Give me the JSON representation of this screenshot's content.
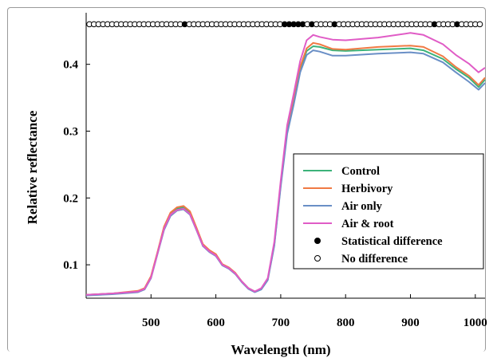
{
  "chart_data": {
    "type": "line",
    "xlabel": "Wavelength (nm)",
    "ylabel": "Relative reflectance",
    "xlim": [
      400,
      1015
    ],
    "ylim": [
      0.05,
      0.47
    ],
    "x_ticks": [
      500,
      600,
      700,
      800,
      900,
      1000
    ],
    "y_ticks": [
      0.1,
      0.2,
      0.3,
      0.4
    ],
    "grid": false,
    "legend_position": "center-right",
    "series": [
      {
        "name": "Control",
        "color": "#3cb37a",
        "x": [
          400,
          440,
          480,
          490,
          500,
          510,
          520,
          530,
          540,
          550,
          560,
          570,
          580,
          590,
          600,
          610,
          620,
          630,
          640,
          650,
          660,
          670,
          680,
          690,
          700,
          710,
          720,
          730,
          740,
          750,
          760,
          780,
          800,
          850,
          900,
          920,
          950,
          970,
          990,
          1005,
          1015
        ],
        "y": [
          0.055,
          0.057,
          0.06,
          0.064,
          0.082,
          0.118,
          0.155,
          0.176,
          0.184,
          0.186,
          0.178,
          0.154,
          0.13,
          0.121,
          0.115,
          0.1,
          0.095,
          0.087,
          0.075,
          0.065,
          0.06,
          0.064,
          0.078,
          0.13,
          0.22,
          0.3,
          0.345,
          0.393,
          0.42,
          0.427,
          0.426,
          0.421,
          0.42,
          0.422,
          0.424,
          0.421,
          0.408,
          0.393,
          0.38,
          0.366,
          0.377
        ]
      },
      {
        "name": "Herbivory",
        "color": "#f07a44",
        "x": [
          400,
          440,
          480,
          490,
          500,
          510,
          520,
          530,
          540,
          550,
          560,
          570,
          580,
          590,
          600,
          610,
          620,
          630,
          640,
          650,
          660,
          670,
          680,
          690,
          700,
          710,
          720,
          730,
          740,
          750,
          760,
          780,
          800,
          850,
          900,
          920,
          950,
          970,
          990,
          1005,
          1015
        ],
        "y": [
          0.055,
          0.057,
          0.061,
          0.065,
          0.083,
          0.119,
          0.157,
          0.178,
          0.186,
          0.188,
          0.18,
          0.156,
          0.131,
          0.122,
          0.116,
          0.101,
          0.096,
          0.088,
          0.075,
          0.065,
          0.06,
          0.064,
          0.078,
          0.13,
          0.221,
          0.302,
          0.348,
          0.396,
          0.424,
          0.432,
          0.43,
          0.423,
          0.422,
          0.426,
          0.428,
          0.426,
          0.412,
          0.396,
          0.383,
          0.369,
          0.38
        ]
      },
      {
        "name": "Air only",
        "color": "#6a8fc6",
        "x": [
          400,
          440,
          480,
          490,
          500,
          510,
          520,
          530,
          540,
          550,
          560,
          570,
          580,
          590,
          600,
          610,
          620,
          630,
          640,
          650,
          660,
          670,
          680,
          690,
          700,
          710,
          720,
          730,
          740,
          750,
          760,
          780,
          800,
          850,
          900,
          920,
          950,
          970,
          990,
          1005,
          1015
        ],
        "y": [
          0.054,
          0.056,
          0.059,
          0.063,
          0.08,
          0.116,
          0.152,
          0.173,
          0.181,
          0.183,
          0.175,
          0.152,
          0.128,
          0.119,
          0.113,
          0.099,
          0.094,
          0.086,
          0.074,
          0.064,
          0.059,
          0.063,
          0.077,
          0.128,
          0.217,
          0.296,
          0.34,
          0.388,
          0.414,
          0.421,
          0.419,
          0.413,
          0.413,
          0.416,
          0.418,
          0.416,
          0.403,
          0.388,
          0.374,
          0.362,
          0.372
        ]
      },
      {
        "name": "Air & root",
        "color": "#e05cc6",
        "x": [
          400,
          440,
          480,
          490,
          500,
          510,
          520,
          530,
          540,
          550,
          560,
          570,
          580,
          590,
          600,
          610,
          620,
          630,
          640,
          650,
          660,
          670,
          680,
          690,
          700,
          710,
          720,
          730,
          740,
          750,
          760,
          780,
          800,
          850,
          900,
          920,
          950,
          970,
          990,
          1005,
          1015
        ],
        "y": [
          0.055,
          0.057,
          0.06,
          0.064,
          0.081,
          0.117,
          0.154,
          0.175,
          0.182,
          0.184,
          0.176,
          0.153,
          0.129,
          0.12,
          0.114,
          0.1,
          0.095,
          0.087,
          0.075,
          0.065,
          0.06,
          0.065,
          0.08,
          0.134,
          0.226,
          0.309,
          0.356,
          0.405,
          0.436,
          0.444,
          0.441,
          0.437,
          0.436,
          0.44,
          0.447,
          0.444,
          0.43,
          0.414,
          0.401,
          0.388,
          0.395
        ]
      }
    ],
    "significance_markers": {
      "legend_filled": "Statistical difference",
      "legend_open": "No difference",
      "y": 0.46,
      "x": [
        405,
        412,
        419,
        426,
        433,
        440,
        447,
        454,
        461,
        468,
        475,
        482,
        489,
        496,
        503,
        510,
        517,
        524,
        531,
        538,
        545,
        552,
        559,
        566,
        573,
        580,
        587,
        594,
        601,
        608,
        615,
        622,
        629,
        636,
        643,
        650,
        657,
        664,
        671,
        678,
        685,
        692,
        699,
        706,
        713,
        720,
        727,
        734,
        741,
        748,
        755,
        762,
        769,
        776,
        783,
        790,
        797,
        804,
        811,
        818,
        825,
        832,
        839,
        846,
        853,
        860,
        867,
        874,
        881,
        888,
        895,
        902,
        909,
        916,
        923,
        930,
        937,
        944,
        951,
        958,
        965,
        972,
        979,
        986,
        993,
        1000,
        1007
      ],
      "filled_x": [
        552,
        706,
        713,
        720,
        727,
        734,
        748,
        783,
        937,
        972
      ]
    }
  }
}
